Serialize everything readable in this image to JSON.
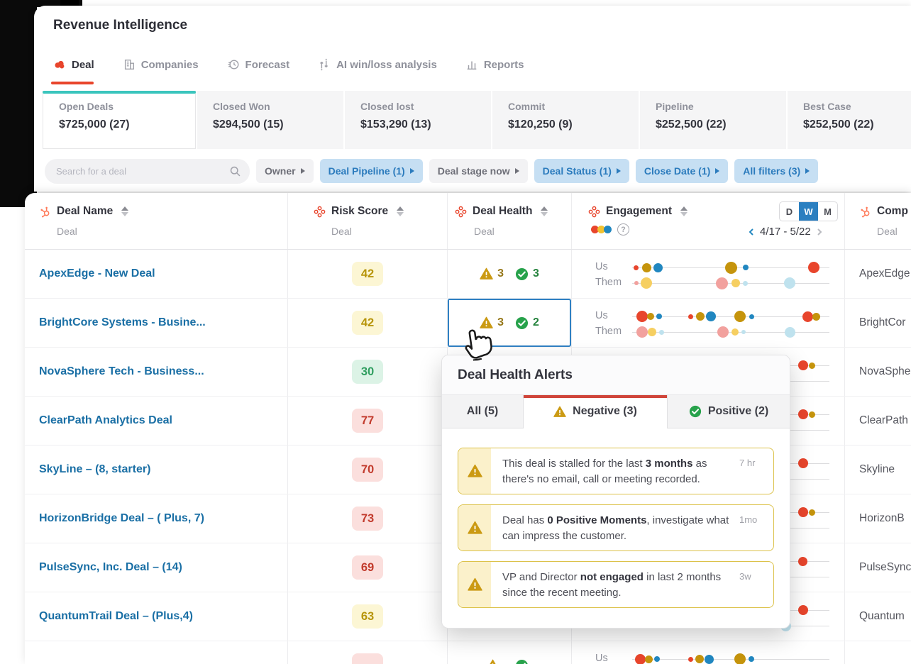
{
  "header": {
    "title": "Revenue Intelligence",
    "tabs": [
      {
        "label": "Deal",
        "active": true
      },
      {
        "label": "Companies"
      },
      {
        "label": "Forecast"
      },
      {
        "label": "AI win/loss analysis"
      },
      {
        "label": "Reports"
      }
    ]
  },
  "summary_cards": [
    {
      "label": "Open Deals",
      "value": "$725,000 (27)",
      "active": true
    },
    {
      "label": "Closed Won",
      "value": "$294,500 (15)"
    },
    {
      "label": "Closed lost",
      "value": "$153,290 (13)"
    },
    {
      "label": "Commit",
      "value": "$120,250 (9)"
    },
    {
      "label": "Pipeline",
      "value": "$252,500 (22)"
    },
    {
      "label": "Best Case",
      "value": "$252,500 (22)"
    }
  ],
  "filters": {
    "search_placeholder": "Search for a deal",
    "buttons": [
      {
        "label": "Owner",
        "active": false
      },
      {
        "label": "Deal Pipeline (1)",
        "active": true
      },
      {
        "label": "Deal stage now",
        "active": false
      },
      {
        "label": "Deal Status (1)",
        "active": true
      },
      {
        "label": "Close Date (1)",
        "active": true
      },
      {
        "label": "All filters (3)",
        "active": true
      }
    ]
  },
  "table": {
    "columns": [
      {
        "label": "Deal Name",
        "sub": "Deal"
      },
      {
        "label": "Risk Score",
        "sub": "Deal"
      },
      {
        "label": "Deal Health",
        "sub": "Deal"
      },
      {
        "label": "Engagement",
        "sub": ""
      },
      {
        "label": "Comp",
        "sub": "Deal"
      }
    ],
    "engagement_header": {
      "toggle": [
        "D",
        "W",
        "M"
      ],
      "toggle_active": "W",
      "date_range": "4/17 - 5/22",
      "help": "?"
    },
    "engagement_labels": {
      "us": "Us",
      "them": "Them"
    },
    "rows": [
      {
        "name": "ApexEdge - New Deal",
        "risk": "42",
        "risk_level": "yellow",
        "health": {
          "neg": "3",
          "pos": "3"
        },
        "company": "ApexEdge",
        "us": [
          [
            0.02,
            7,
            "red"
          ],
          [
            0.075,
            13,
            "gold"
          ],
          [
            0.13,
            13,
            "blue"
          ],
          [
            0.5,
            17,
            "gold"
          ],
          [
            0.575,
            8,
            "blue"
          ],
          [
            0.92,
            16,
            "red"
          ]
        ],
        "them": [
          [
            0.02,
            6,
            "pink"
          ],
          [
            0.07,
            16,
            "yellow"
          ],
          [
            0.455,
            17,
            "pink"
          ],
          [
            0.525,
            12,
            "yellow"
          ],
          [
            0.575,
            7,
            "lblue"
          ],
          [
            0.8,
            16,
            "lblue"
          ]
        ]
      },
      {
        "name": "BrightCore Systems - Busine...",
        "risk": "42",
        "risk_level": "yellow",
        "health": {
          "neg": "3",
          "pos": "2"
        },
        "selected": true,
        "company": "BrightCor",
        "us": [
          [
            0.05,
            16,
            "red"
          ],
          [
            0.095,
            10,
            "gold"
          ],
          [
            0.135,
            8,
            "blue"
          ],
          [
            0.295,
            7,
            "red"
          ],
          [
            0.345,
            12,
            "gold"
          ],
          [
            0.4,
            14,
            "blue"
          ],
          [
            0.545,
            16,
            "gold"
          ],
          [
            0.605,
            7,
            "blue"
          ],
          [
            0.89,
            15,
            "red"
          ],
          [
            0.935,
            11,
            "gold"
          ]
        ],
        "them": [
          [
            0.05,
            16,
            "pink"
          ],
          [
            0.1,
            12,
            "yellow"
          ],
          [
            0.15,
            7,
            "lblue"
          ],
          [
            0.46,
            16,
            "pink"
          ],
          [
            0.52,
            10,
            "yellow"
          ],
          [
            0.565,
            6,
            "lblue"
          ],
          [
            0.8,
            15,
            "lblue"
          ]
        ]
      },
      {
        "name": "NovaSphere Tech - Business...",
        "risk": "30",
        "risk_level": "green",
        "company": "NovaSphe",
        "us": [
          [
            0.865,
            14,
            "red"
          ],
          [
            0.91,
            9,
            "gold"
          ]
        ],
        "them": []
      },
      {
        "name": "ClearPath Analytics Deal",
        "risk": "77",
        "risk_level": "red",
        "company": "ClearPath",
        "us": [
          [
            0.865,
            14,
            "red"
          ],
          [
            0.91,
            9,
            "gold"
          ]
        ],
        "them": []
      },
      {
        "name": "SkyLine – (8, starter)",
        "risk": "70",
        "risk_level": "red",
        "company": "Skyline",
        "us": [
          [
            0.865,
            14,
            "red"
          ]
        ],
        "them": []
      },
      {
        "name": "HorizonBridge Deal – ( Plus, 7)",
        "risk": "73",
        "risk_level": "red",
        "company": "HorizonB",
        "us": [
          [
            0.865,
            14,
            "red"
          ],
          [
            0.91,
            9,
            "gold"
          ]
        ],
        "them": []
      },
      {
        "name": "PulseSync, Inc. Deal – (14)",
        "risk": "69",
        "risk_level": "red",
        "company": "PulseSync",
        "us": [
          [
            0.865,
            13,
            "red"
          ]
        ],
        "them": []
      },
      {
        "name": "QuantumTrail Deal – (Plus,4)",
        "risk": "63",
        "risk_level": "yellow",
        "company": "Quantum",
        "us": [
          [
            0.865,
            14,
            "red"
          ]
        ],
        "them": [
          [
            0.78,
            15,
            "lblue"
          ]
        ]
      },
      {
        "name": "",
        "risk": "",
        "risk_level": "red",
        "health": {
          "neg": "",
          "pos": ""
        },
        "company": "",
        "us": [
          [
            0.04,
            15,
            "red"
          ],
          [
            0.085,
            11,
            "gold"
          ],
          [
            0.125,
            8,
            "blue"
          ],
          [
            0.295,
            7,
            "red"
          ],
          [
            0.34,
            12,
            "gold"
          ],
          [
            0.39,
            13,
            "blue"
          ],
          [
            0.545,
            16,
            "gold"
          ],
          [
            0.605,
            8,
            "blue"
          ]
        ],
        "them": []
      }
    ]
  },
  "engagement_colors": {
    "red": "#e8452c",
    "gold": "#c5940c",
    "blue": "#2187c0",
    "pink": "#f2a19e",
    "yellow": "#f6cf61",
    "lblue": "#bfe2ee"
  },
  "legend_colors": [
    "#e8452c",
    "#f2c230",
    "#2187c0"
  ],
  "accent_colors": {
    "teal": "#3bc5bd",
    "red": "#e8452c",
    "filter_blue": "#2b7bbd",
    "link_blue": "#1a6fa5"
  },
  "popup": {
    "title": "Deal Health Alerts",
    "tabs": [
      {
        "label": "All (5)"
      },
      {
        "label": "Negative (3)",
        "active": true,
        "icon": "warning"
      },
      {
        "label": "Positive (2)",
        "icon": "check"
      }
    ],
    "alerts": [
      {
        "parts": [
          {
            "t": "This deal is stalled for the last "
          },
          {
            "t": "3 months",
            "b": 1
          },
          {
            "t": " as there's no email, call or meeting recorded."
          }
        ],
        "time": "7 hr"
      },
      {
        "parts": [
          {
            "t": "Deal has "
          },
          {
            "t": "0 Positive Moments",
            "b": 1
          },
          {
            "t": ", investigate what can impress the customer."
          }
        ],
        "time": "1mo"
      },
      {
        "parts": [
          {
            "t": "VP and Director "
          },
          {
            "t": "not engaged",
            "b": 1
          },
          {
            "t": " in last 2 months since the recent meeting."
          }
        ],
        "time": "3w"
      }
    ]
  }
}
